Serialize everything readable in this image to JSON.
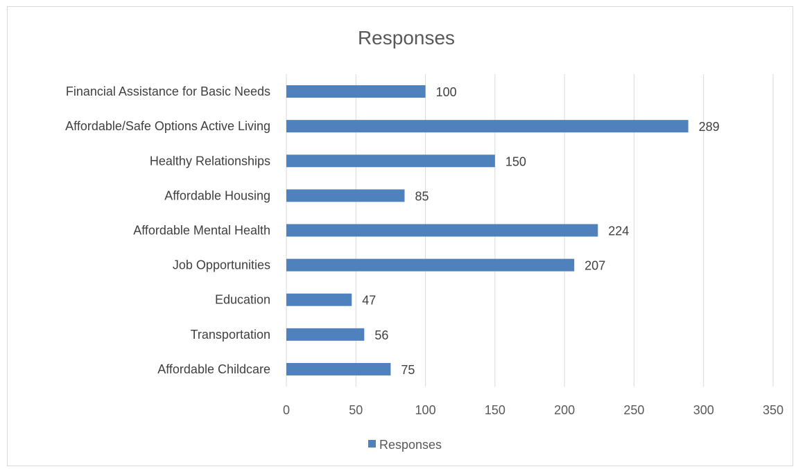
{
  "chart_data": {
    "type": "bar",
    "orientation": "horizontal",
    "title": "Responses",
    "categories": [
      "Financial Assistance for Basic Needs",
      "Affordable/Safe Options Active Living",
      "Healthy Relationships",
      "Affordable Housing",
      "Affordable Mental Health",
      "Job Opportunities",
      "Education",
      "Transportation",
      "Affordable Childcare"
    ],
    "series": [
      {
        "name": "Responses",
        "color": "#4f81bd",
        "values": [
          100,
          289,
          150,
          85,
          224,
          207,
          47,
          56,
          75
        ]
      }
    ],
    "xlim": [
      0,
      350
    ],
    "xticks": [
      0,
      50,
      100,
      150,
      200,
      250,
      300,
      350
    ],
    "grid": true,
    "legend": "bottom",
    "data_labels": true
  }
}
